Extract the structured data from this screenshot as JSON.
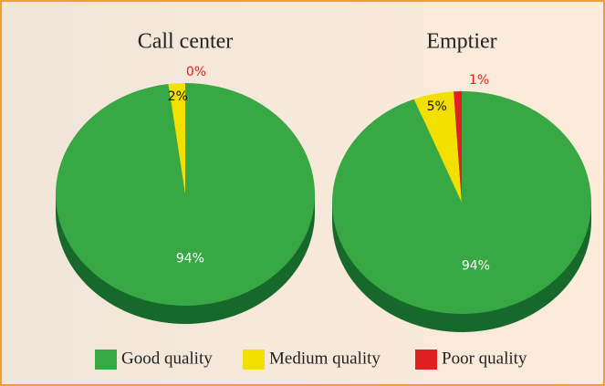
{
  "chart_data": [
    {
      "type": "pie",
      "title": "Call center",
      "categories": [
        "Good quality",
        "Medium quality",
        "Poor quality"
      ],
      "values": [
        94,
        2,
        0
      ],
      "value_labels": [
        "94%",
        "2%",
        "0%"
      ],
      "colors": [
        "#38a844",
        "#f2e000",
        "#e0201e"
      ]
    },
    {
      "type": "pie",
      "title": "Emptier",
      "categories": [
        "Good quality",
        "Medium quality",
        "Poor quality"
      ],
      "values": [
        94,
        5,
        1
      ],
      "value_labels": [
        "94%",
        "5%",
        "1%"
      ],
      "colors": [
        "#38a844",
        "#f2e000",
        "#e0201e"
      ]
    }
  ]
}
